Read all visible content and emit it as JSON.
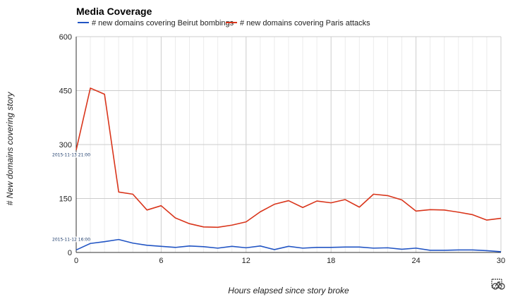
{
  "chart_data": {
    "type": "line",
    "title": "Media Coverage",
    "xlabel": "Hours elapsed since story broke",
    "ylabel": "# New domains covering story",
    "xlim": [
      0,
      30
    ],
    "ylim": [
      0,
      600
    ],
    "x_ticks": [
      0,
      6,
      12,
      18,
      24,
      30
    ],
    "y_ticks": [
      0,
      150,
      300,
      450,
      600
    ],
    "grid": true,
    "legend_position": "top",
    "x": [
      0,
      1,
      2,
      3,
      4,
      5,
      6,
      7,
      8,
      9,
      10,
      11,
      12,
      13,
      14,
      15,
      16,
      17,
      18,
      19,
      20,
      21,
      22,
      23,
      24,
      25,
      26,
      27,
      28,
      29,
      30
    ],
    "series": [
      {
        "name": "# new domains covering Beirut bombings",
        "color": "#2255c4",
        "values": [
          7,
          25,
          30,
          36,
          26,
          20,
          17,
          14,
          18,
          16,
          12,
          17,
          13,
          18,
          8,
          17,
          12,
          14,
          14,
          15,
          15,
          12,
          13,
          9,
          12,
          6,
          6,
          7,
          7,
          5,
          2
        ]
      },
      {
        "name": "# new domains covering Paris attacks",
        "color": "#d9351b",
        "values": [
          285,
          457,
          440,
          168,
          162,
          118,
          130,
          96,
          80,
          71,
          70,
          76,
          85,
          113,
          134,
          144,
          125,
          143,
          138,
          147,
          126,
          162,
          158,
          146,
          115,
          119,
          118,
          112,
          105,
          90,
          95
        ]
      }
    ],
    "annotations": [
      {
        "text": "2015-11-13 21:00",
        "series": 1,
        "x": 0
      },
      {
        "text": "2015-11-12 16:00",
        "series": 0,
        "x": 0
      }
    ]
  },
  "icons": {
    "export": "bike-export-icon"
  }
}
